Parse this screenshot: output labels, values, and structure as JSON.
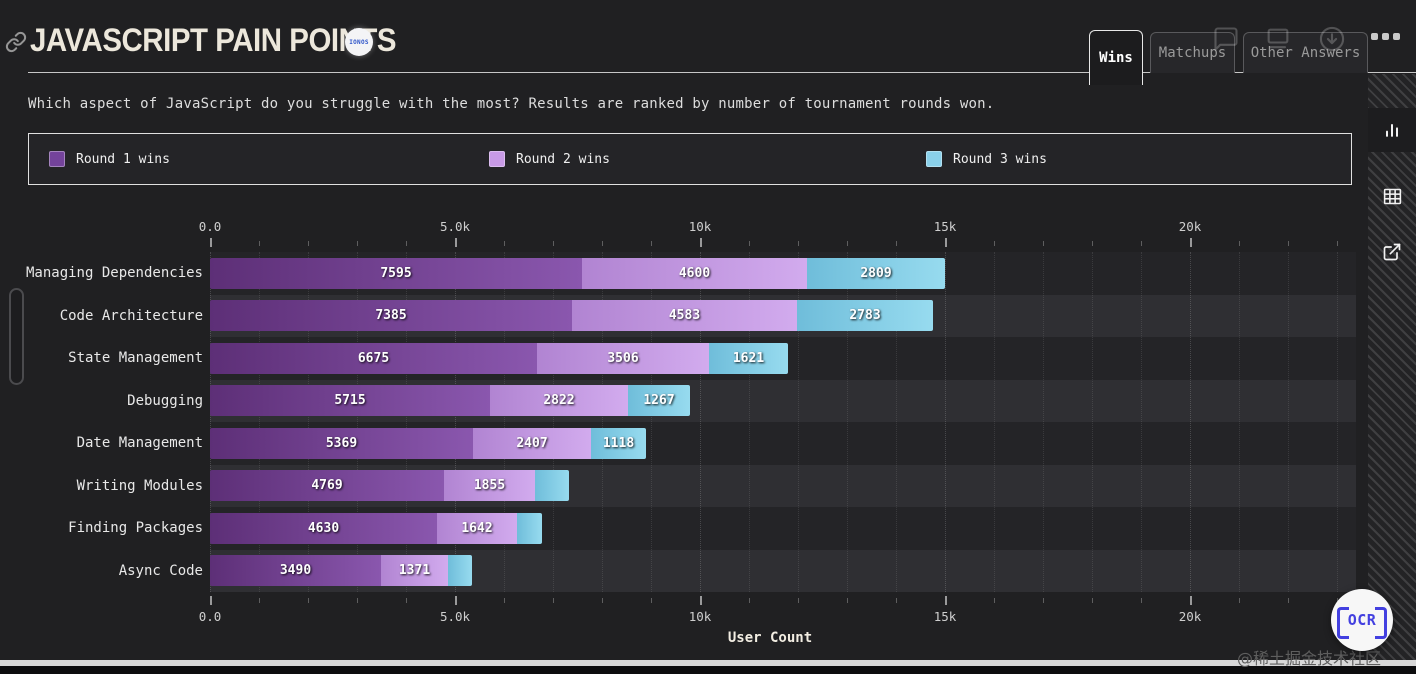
{
  "header": {
    "title": "JAVASCRIPT PAIN POINTS",
    "badge_text": "IONOS",
    "tabs": [
      {
        "label": "Wins",
        "active": true
      },
      {
        "label": "Matchups",
        "active": false
      },
      {
        "label": "Other Answers",
        "active": false
      }
    ],
    "toolbar_icons": [
      "comment-icon",
      "screen-icon",
      "download-icon",
      "more-options-icon"
    ]
  },
  "subtitle": "Which aspect of JavaScript do you struggle with the most? Results are ranked by number of tournament rounds won.",
  "legend": [
    {
      "label": "Round 1 wins",
      "color": "#74439b"
    },
    {
      "label": "Round 2 wins",
      "color": "#c89ae6"
    },
    {
      "label": "Round 3 wins",
      "color": "#8ad0ea"
    }
  ],
  "chart_data": {
    "type": "bar",
    "stacked": true,
    "orientation": "horizontal",
    "title": "JavaScript Pain Points",
    "xlabel": "User Count",
    "ylabel": "",
    "categories": [
      "Managing Dependencies",
      "Code Architecture",
      "State Management",
      "Debugging",
      "Date Management",
      "Writing Modules",
      "Finding Packages",
      "Async Code"
    ],
    "series": [
      {
        "name": "Round 1 wins",
        "color_start": "#5d2f77",
        "color_end": "#8a57ae",
        "values": [
          7595,
          7385,
          6675,
          5715,
          5369,
          4769,
          4630,
          3490
        ]
      },
      {
        "name": "Round 2 wins",
        "color_start": "#b184d2",
        "color_end": "#d2abee",
        "values": [
          4600,
          4583,
          3506,
          2822,
          2407,
          1855,
          1642,
          1371
        ]
      },
      {
        "name": "Round 3 wins",
        "color_start": "#6fbdda",
        "color_end": "#97dbef",
        "values": [
          2809,
          2783,
          1621,
          1267,
          1118,
          700,
          510,
          490
        ],
        "note": "last three segments unlabeled in UI; values estimated from bar widths"
      }
    ],
    "x_ticks": [
      "0.0",
      "5.0k",
      "10k",
      "15k",
      "20k"
    ],
    "x_tick_values": [
      0,
      5000,
      10000,
      15000,
      20000
    ],
    "x_minor_step": 1000,
    "xlim": [
      0,
      23400
    ],
    "grid": "dotted vertical",
    "legend_position": "top boxed"
  },
  "side_toolbar": {
    "icons": [
      "bar-chart",
      "table",
      "external-link"
    ],
    "active": "bar-chart"
  },
  "ocr_button": {
    "label": "OCR"
  },
  "watermark": {
    "text": "@稀土掘金技术社区"
  }
}
